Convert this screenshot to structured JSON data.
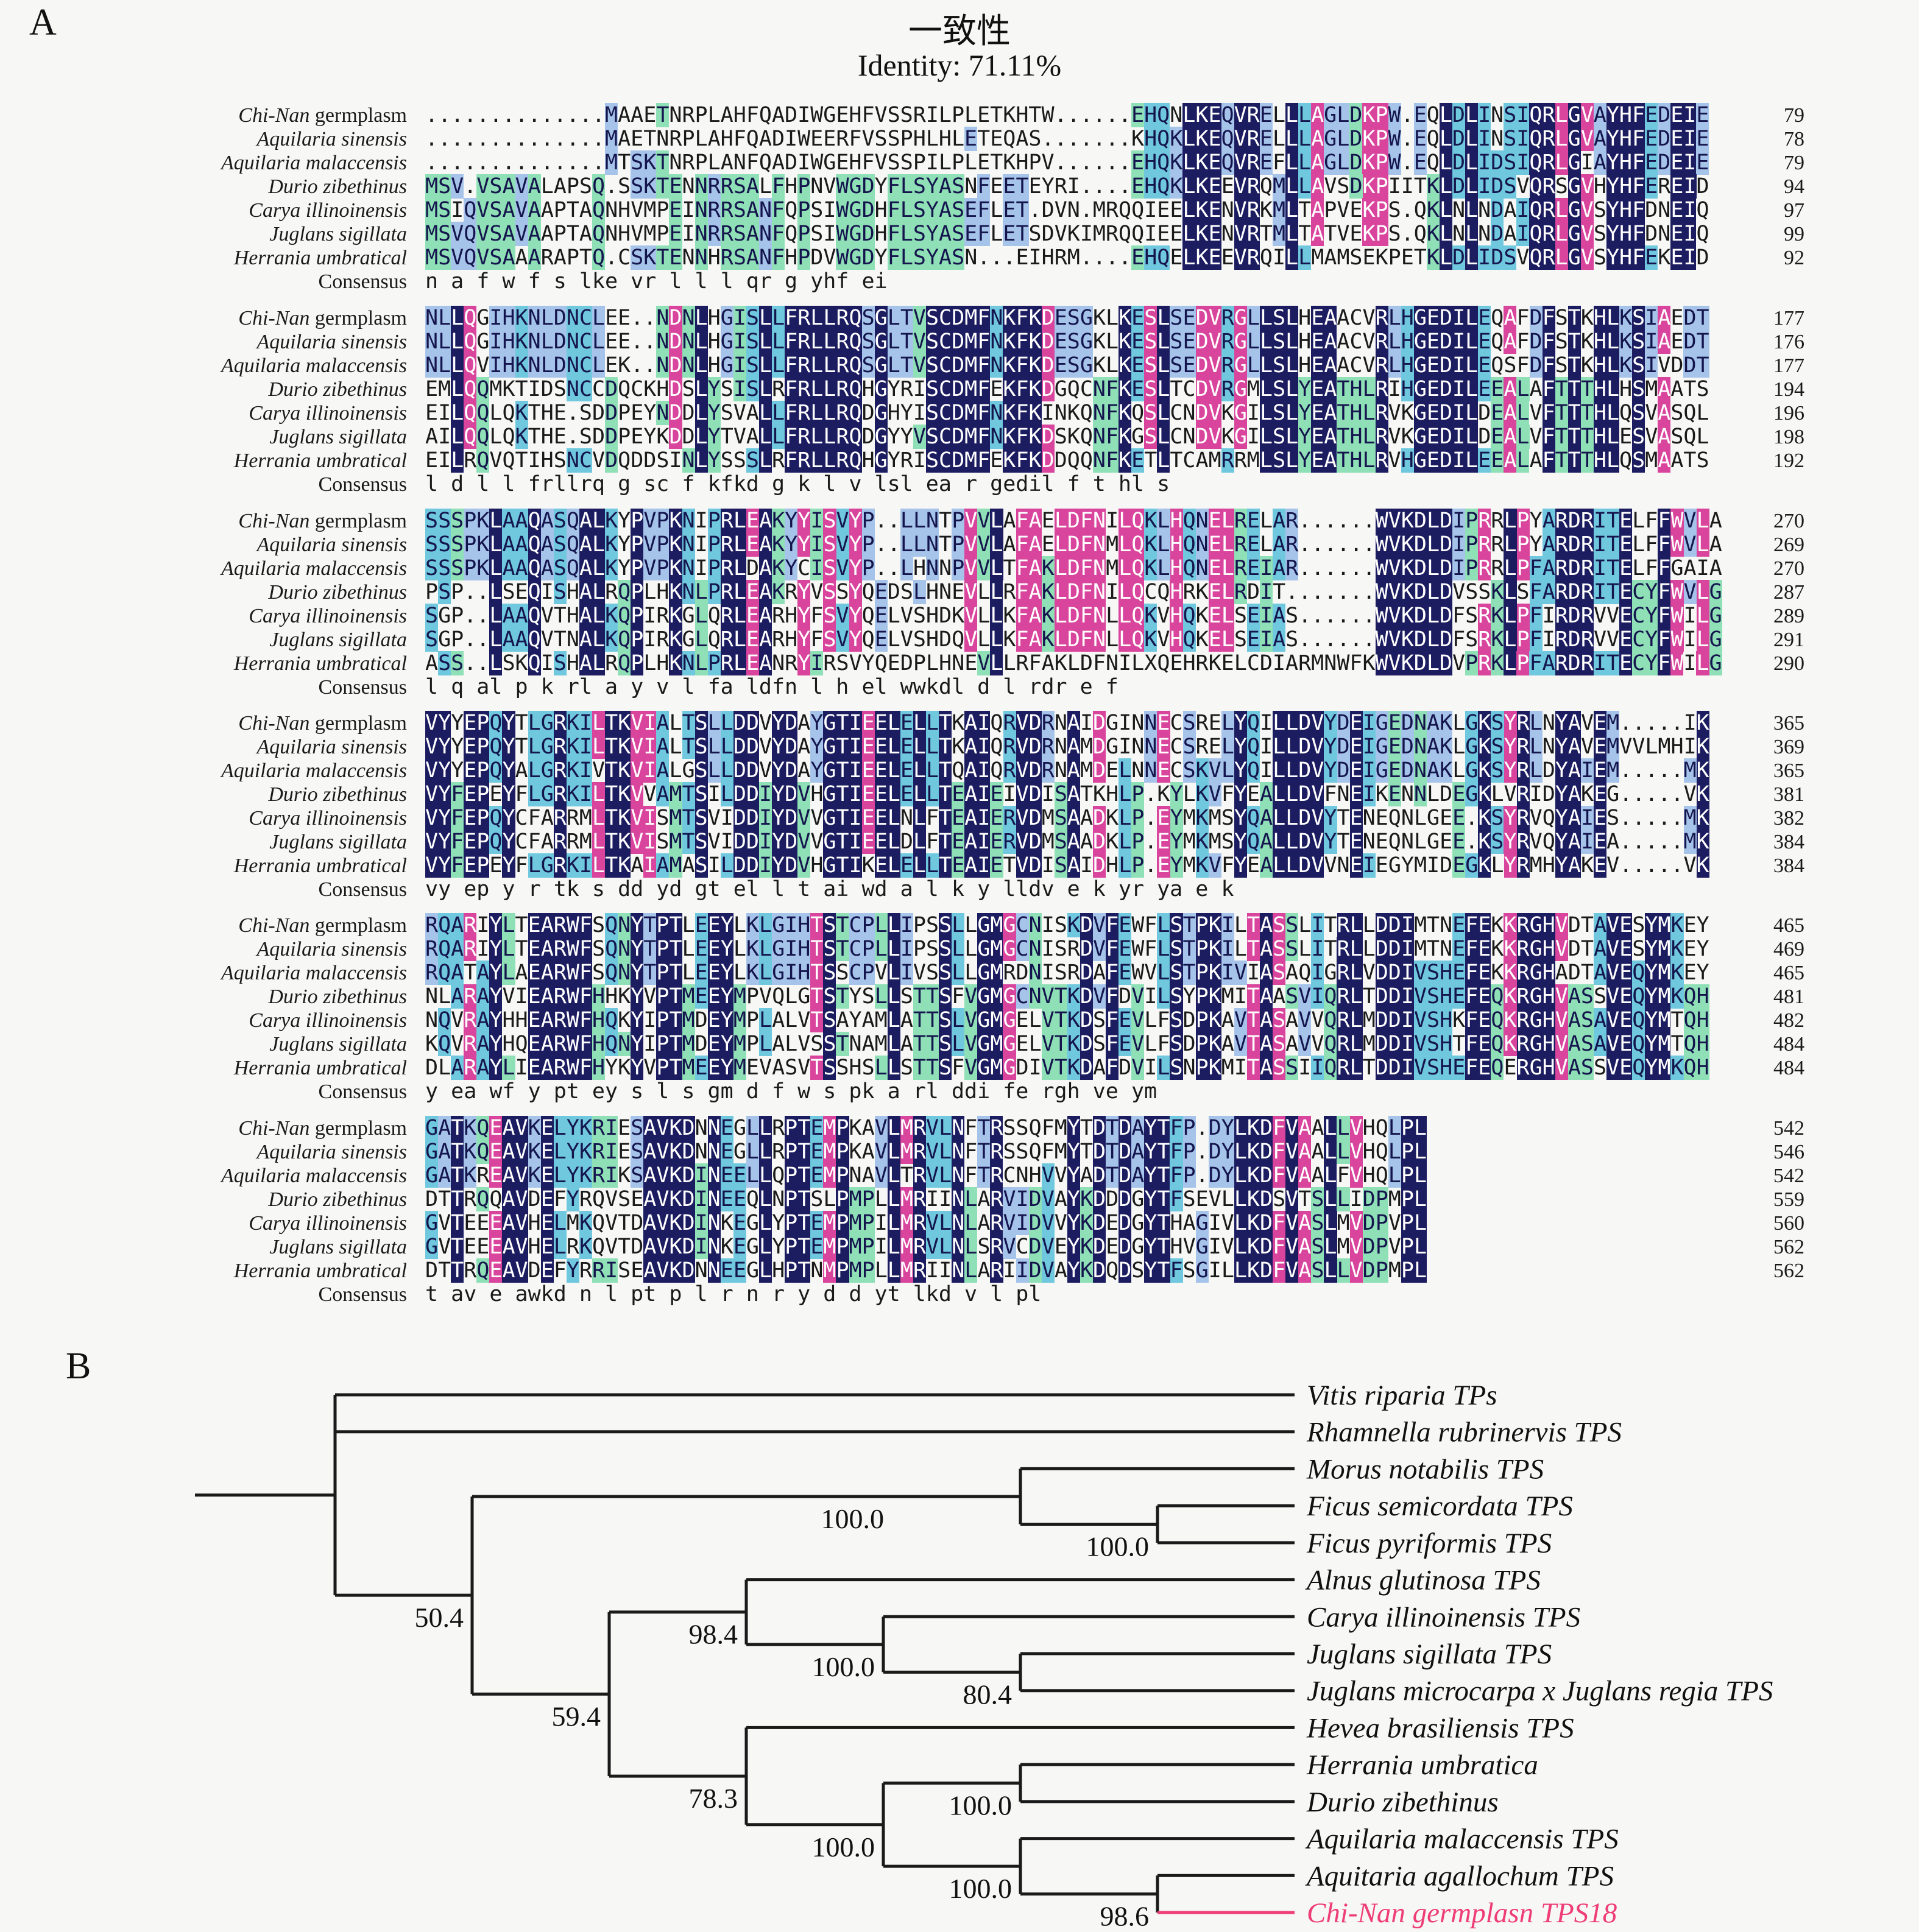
{
  "panelA": {
    "label": "A",
    "title_cn": "一致性",
    "title_en": "Identity: 71.11%",
    "row_labels": [
      {
        "it": "Chi-Nan",
        "ro": " germplasm"
      },
      {
        "it": "Aquilaria sinensis",
        "ro": ""
      },
      {
        "it": "Aquilaria malaccensis",
        "ro": ""
      },
      {
        "it": "Durio zibethinus",
        "ro": ""
      },
      {
        "it": "Carya illinoinensis",
        "ro": ""
      },
      {
        "it": "Juglans sigillata",
        "ro": ""
      },
      {
        "it": "Herrania umbratical",
        "ro": ""
      },
      {
        "it": "",
        "ro": "Consensus"
      }
    ],
    "blocks": [
      {
        "seqs": [
          "..............MAAETNRPLAHFQADIWGEHFVSSRILPLETKHTW......EHQNLKEQVRELLLAGLDKPW.EQLDLINSIQRLGVAYHFEDEIE",
          "..............MAETNRPLAHFQADIWEERFVSSPHLHLETEQAS.......KHQKLKEQVRELLLAGLDKPW.EQLDLINSIQRLGVAYHFEDEIE",
          "..............MTSKTNRPLANFQADIWGEHFVSSPILPLETKHPV......EHQKLKEQVREFLLAGLDKPW.EQLDLIDSIQRLGIAYHFEDEIE",
          "MSV.VSAVALAPSQ.SSKTENNRRSALFHPNVWGDYFLSYASNFEETEYRI....EHQKLKEEVRQMLLAVSDKPIITKLDLIDSVQRSGVHYHFEREID",
          "MSIQVSAVAAPTAQNHVMPEINRRSANFQPSIWGDHFLSYASEFLET.DVN.MRQQIEELKENVRKMLTAPVEKPS.QKLNLNDAIQRLGVSYHFDNEIQ",
          "MSVQVSAVAAPTAQNHVMPEINRRSANFQPSIWGDHFLSYASEFLETSDVKIMRQQIEELKENVRTMLTATVEKPS.QKLNLNDAIQRLGVSYHFDNEIQ",
          "MSVQVSAAARAPTQ.CSKTENNHRSANFHPDVWGDYFLSYASN...EIHRM....EHQELKEEVRQILLMAMSEKPETKLDLIDSVQRLGVSYHFEKEID"
        ],
        "consensus": "                    n    a f   w   f s                 lke vr   l            l l      qr  g  yhf  ei",
        "numbers": [
          79,
          78,
          79,
          94,
          97,
          99,
          92
        ]
      },
      {
        "seqs": [
          "NLLQGIHKNLDNCLEE..NDNLHGISLLFRLLRQSGLTVSCDMFNKFKDESGKLKESLSEDVRGLLSLHEAACVRLHGEDILEQAFDFSTKHLKSIAEDT",
          "NLLQGIHKNLDNCLEE..NDNLHGISLLFRLLRQSGLTVSCDMFNKFKDESGKLKESLSEDVRGLLSLHEAACVRLHGEDILEQAFDFSTKHLKSIAEDT",
          "NLLQVIHKNLDNCLEK..NDNLHGISLLFRLLRQSGLTVSCDMFNKFKDESGKLKESLSEDVRGLLSLHEAACVRLHGEDILEQSFDFSTKHLKSIVDDT",
          "EMLQQMKTIDSNCCDQCKHDSLYSISLRFRLLRQHGYRISCDMFEKFKDGQCNFKESLTCDVRGMLSLYEATHLRIHGEDILEEALAFTTTHLHSMAATS",
          "EILQQLQKTHE.SDDPEYNDDLYSVALLFRLLRQDGHYISCDMFNKFKINKQNFKQSLCNDVKGILSLYEATHLRVKGEDILDEALVFTTTHLQSVASQL",
          "AILQQLQKTHE.SDDPEYKDDLYTVALLFRLLRQDGYYVSCDMFNKFKDSKQNFKGSLCNDVKGILSLYEATHLRVKGEDILDEALVFTTTHLESVASQL",
          "EILRQVQTIHSNCVDQDDSINLYSSSLRFRLLRQHGYRISCDMFEKFKDDQQNFKETLTCAMRRMLSLYEATHLRVHGEDILEEALAFTTTHLQSMAATS"
        ],
        "consensus": " l                d l      l frllrq g   sc  f kfkd  g k  l   v   lsl ea  r  gedil       f t hl  s   ",
        "numbers": [
          177,
          176,
          177,
          194,
          196,
          198,
          192
        ]
      },
      {
        "seqs": [
          "SSSPKLAAQASQALKYPVPKNIPRLEAKYYISVYP..LLNTPVVLAFAELDFNILQKLHQNELRELAR......WVKDLDIPRRLPYARDRITELFFWVLA",
          "SSSPKLAAQASQALKYPVPKNIPRLEAKYYISVYP..LLNTPVVLAFAELDFNMLQKLHQNELRELAR......WVKDLDIPRRLPYARDRITELFFWVLA",
          "SSSPKLAAQASQALKYPVPKNIPRLDAKYCISVYP..LHNNPVVLTFAKLDFNMLQKLHQNELREIAR......WVKDLDIPRRLPFARDRITELFFGAIA",
          "PSP..LSEQISHALRQPLHKNLPRLEAKRYVSSYQEDSLHNEVLLRFAKLDFNILQCQHRKELRDIT.......WVKDLDVSSKLSFARDRITECYFWVLG",
          "SGP..LAAQVTHALKQPIRKGLQRLEARHYFSVYQELVSHDKVLLKFAKLDFNLLQKVHQKELSEIAS......WVKDLDFSRKLPFIRDRVVECYFWILG",
          "SGP..LAAQVTNALKQPIRKGLQRLEARHYFSVYQELVSHDQVLLKFAKLDFNLLQKVHQKELSEIAS......WVKDLDFSRKLPFIRDRVVECYFWILG",
          "ASS..LSKQISHALRQPLHKNLPRLEANRYIRSVYQEDPLHNEVLLRFAKLDFNILXQEHRKELCDIARMNWFKWVKDLDVPRKLPFARDRITECYFWILG"
        ],
        "consensus": "     l   q   al   p  k   rl  a     y          v l fa ldfn l    h  el       wwkdl d    l   rdr  e  f  ",
        "numbers": [
          270,
          269,
          270,
          287,
          289,
          291,
          290
        ]
      },
      {
        "seqs": [
          "VYYEPQYTLGRKILTKVIALTSLLDDVYDAYGTIEELELLTKAIQRVDRNAIDGINNECSRELYQILLDVYDEIGEDNAKLGKSYRLNYAVEM.....IK",
          "VYYEPQYTLGRKILTKVIALTSLLDDVYDAYGTIEELELLTKAIQRVDRNAMDGINNECSRELYQILLDVYDEIGEDNAKLGKSYRLNYAVEMVVLMHIK",
          "VYYEPQYALGRKIVTKVIALGSLLDDVYDAYGTIEELELLTQAIQRVDRNAMDELNNECSKVLYQILLDVYDEIGEDNAKLGKSYRLDYAIEM.....MK",
          "VYFEPEYFLGRKILTKVVAMTSILDDIYDVHGTIEELELLTEAIEIVDISATKHLP.KYLKVFYEALLDVFNEIKENNLDEGKLVRIDYAKEG.....VK",
          "VYFEPQYCFARRMLTKVISMTSVIDDIYDVVGTIEELNLFTEAIERVDMSAADKLP.EYMKMSYQALLDVYTENEQNLGEE.KSYRVQYAIES.....MK",
          "VYFEPQYCFARRMLTKVISMTSVIDDIYDVVGTIEELDLFTEAIERVDMSAADKLP.EYMKMSYQALLDVYTENEQNLGEE.KSYRVQYAIEA.....MK",
          "VYFEPEYFLGRKILTKAIAMASILDDIYDVHGTIKELELLTEAIETVDISAIDHLP.EYMKVFYEALLDVVNEIEGYMIDEGKLYRMHYAKEV.....VK"
        ],
        "consensus": "vy ep y   r   tk     s  dd yd  gt  el l  t ai   wd  a     l    k  y  lldv  e          k yr  ya e   k",
        "numbers": [
          365,
          369,
          365,
          381,
          382,
          384,
          384
        ]
      },
      {
        "seqs": [
          "RQARIYLTEARWFSQNYTPTLEEYLKLGIHTSTCPLLIPSSLLGMGCNISKDVFEWFLSTPKILTASSLITRLLDDIMTNEFEKKRGHVDTAVESYMKEY",
          "RQARIYLTEARWFSQNYTPTLEEYLKLGIHTSTCPLLIPSSLLGMGCNISRDVFEWFLSTPKILTASSLITRLLDDIMTNEFEKKRGHVDTAVESYMKEY",
          "RQATAYLAEARWFSQNYTPTLEEYLKLGIHTSSCPVLIVSSLLGMRDNISRDAFEWVLSTPKIVIASAQIGRLVDDIVSHEFEKKRGHADTAVEQYMKEY",
          "NLARAYVIEARWFHHKYVPTMEEYMPVQLGTSTYSLLSTTSFVGMGCNVTKDVFDVILSYPKMITAASVIQRLTDDIVSHEFEQKRGHVASSVEQYMKQH",
          "NQVRAYHHEARWFHQKYIPTMDEYMPLALVTSAYAMLATTSLVGMGELVTKDSFEVLFSDPKAVTASAVVQRLMDDIVSHKFEQKRGHVASAVEQYMTQH",
          "KQVRAYHQEARWFHQNYIPTMDEYMPLALVSSTNAMLATTSLVGMGELVTKDSFEVLFSDPKAVTASAVVQRLMDDIVSHTFEQKRGHVASAVEQYMTQH",
          "DLARAYLIEARWFHYKYVPTMEEYMEVASVTSSHSLLSTTSFVGMGDIVTKDAFDVILSNPKMITASSIIQRLTDDIVSHEFEQERGHVASSVEQYMKQH"
        ],
        "consensus": "     y  ea wf   y pt  ey        s    l   s   gm     d f w  s pk   a     rl ddi    fe  rgh    ve ym  ",
        "numbers": [
          465,
          469,
          465,
          481,
          482,
          484,
          484
        ]
      },
      {
        "seqs": [
          "GATKQEAVKELYKRIESAVKDNNEGLLRPTEMPKAVLMRVLNFTRSSQFMYTDTDAYTFP.DYLKDFVAALLVHQLPL",
          "GATKQEAVKELYKRIESAVKDNNEGLLRPTEMPKAVLMRVLNFTRSSQFMYTDTDAYTFP.DYLKDFVAALLVHQLPL",
          "GATKREAVKELYKRIKSAVKDINEELLQPTEMPNAVLTRVLNFTRCNHVVYADTDAYTFP.DYLKDFVAALFVHQLPL",
          "DTTRQQAVDEFYRQVSEAVKDINEEQLNPTSLPMPLLMRIINLARVIDVAYKDDDGYTFSEVLLKDSVTSLLIDPMPL",
          "GVTEEEAVHELMKQVTDAVKDINKEGLYPTEMPMPILMRVLNLARVIDVVYKDEDGYTHAGIVLKDFVASLMVDPVPL",
          "GVTEEEAVHELRKQVTDAVKDINKEGLYPTEMPMPILMRVLNLSRVCDVEYKDEDGYTHVGIVLKDFVASLMVDPVPL",
          "DTTRQEAVDEFYRRISEAVKDNNEEGLHPTNMPMPLLMRIINLARIIDVAYKDQDSYTFSGILLKDFVASLLVDPMPL"
        ],
        "consensus": "  t   av e       awkd n   l pt  p   l r  n  r      y d d yt     lkd v  l    pl",
        "numbers": [
          542,
          546,
          542,
          559,
          560,
          562,
          562
        ]
      }
    ]
  },
  "panelB": {
    "label": "B",
    "tree": {
      "lv": 0,
      "children": [
        {
          "name": "Vitis riparia TPs"
        },
        {
          "name": "Rhamnella rubrinervis TPS"
        },
        {
          "boot": "50.4",
          "lv": 1,
          "children": [
            {
              "boot": "100.0",
              "lv": 5,
              "ldx": -210,
              "children": [
                {
                  "name": "Morus notabilis TPS"
                },
                {
                  "boot": "100.0",
                  "lv": 6,
                  "children": [
                    {
                      "name": "Ficus semicordata TPS"
                    },
                    {
                      "name": "Ficus pyriformis TPS"
                    }
                  ]
                }
              ]
            },
            {
              "boot": "59.4",
              "lv": 2,
              "children": [
                {
                  "boot": "98.4",
                  "lv": 3,
                  "children": [
                    {
                      "name": "Alnus glutinosa TPS"
                    },
                    {
                      "boot": "100.0",
                      "lv": 4,
                      "children": [
                        {
                          "name": "Carya illinoinensis TPS"
                        },
                        {
                          "boot": "80.4",
                          "lv": 5,
                          "children": [
                            {
                              "name": "Juglans sigillata TPS"
                            },
                            {
                              "name": "Juglans microcarpa x Juglans regia TPS"
                            }
                          ]
                        }
                      ]
                    }
                  ]
                },
                {
                  "boot": "78.3",
                  "lv": 3,
                  "children": [
                    {
                      "name": "Hevea brasiliensis TPS"
                    },
                    {
                      "boot": "100.0",
                      "lv": 4,
                      "children": [
                        {
                          "boot": "100.0",
                          "lv": 5,
                          "children": [
                            {
                              "name": "Herrania umbratica"
                            },
                            {
                              "name": "Durio zibethinus"
                            }
                          ]
                        },
                        {
                          "boot": "100.0",
                          "lv": 5,
                          "children": [
                            {
                              "name": "Aquilaria malaccensis TPS"
                            },
                            {
                              "boot": "98.6",
                              "lv": 6,
                              "children": [
                                {
                                  "name": "Aquitaria agallochum TPS"
                                },
                                {
                                  "name": "Chi-Nan germplasn TPS18",
                                  "highlight": true
                                }
                              ]
                            }
                          ]
                        }
                      ]
                    }
                  ]
                }
              ]
            }
          ]
        }
      ]
    }
  },
  "colors": {
    "conserved_100": "#1c1c60",
    "conserved_high": "#d9449c",
    "conserved_mid": "#6fc8dd",
    "conserved_low": "#8fe0b6",
    "conserved_min": "#a6c4ea",
    "highlight_leaf": "#ee3d77"
  }
}
